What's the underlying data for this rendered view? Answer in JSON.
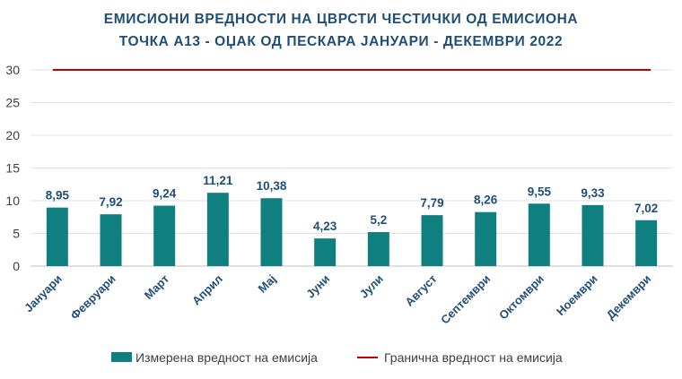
{
  "chart_data": {
    "type": "bar",
    "title_line1": "ЕМИСИОНИ ВРЕДНОСТИ НА ЦВРСТИ ЧЕСТИЧКИ ОД ЕМИСИОНА",
    "title_line2": "ТОЧКА А13 - ОЏАК ОД ПЕСКАРА ЈАНУАРИ - ДЕКЕМВРИ 2022",
    "categories": [
      "Јануари",
      "Февруари",
      "Март",
      "Април",
      "Мај",
      "Јуни",
      "Јули",
      "Август",
      "Септември",
      "Октомври",
      "Ноември",
      "Декември"
    ],
    "series": [
      {
        "name": "Измерена вредност на емисија",
        "type": "bar",
        "color": "#0f7f7f",
        "values": [
          8.95,
          7.92,
          9.24,
          11.21,
          10.38,
          4.23,
          5.2,
          7.79,
          8.26,
          9.55,
          9.33,
          7.02
        ],
        "labels": [
          "8,95",
          "7,92",
          "9,24",
          "11,21",
          "10,38",
          "4,23",
          "5,2",
          "7,79",
          "8,26",
          "9,55",
          "9,33",
          "7,02"
        ]
      },
      {
        "name": "Гранична вредност на емисија",
        "type": "line",
        "color": "#c00000",
        "values": [
          30,
          30,
          30,
          30,
          30,
          30,
          30,
          30,
          30,
          30,
          30,
          30
        ]
      }
    ],
    "yticks": [
      0,
      5,
      10,
      15,
      20,
      25,
      30
    ],
    "ylim": [
      0,
      30
    ],
    "grid": true,
    "legend_position": "bottom"
  }
}
